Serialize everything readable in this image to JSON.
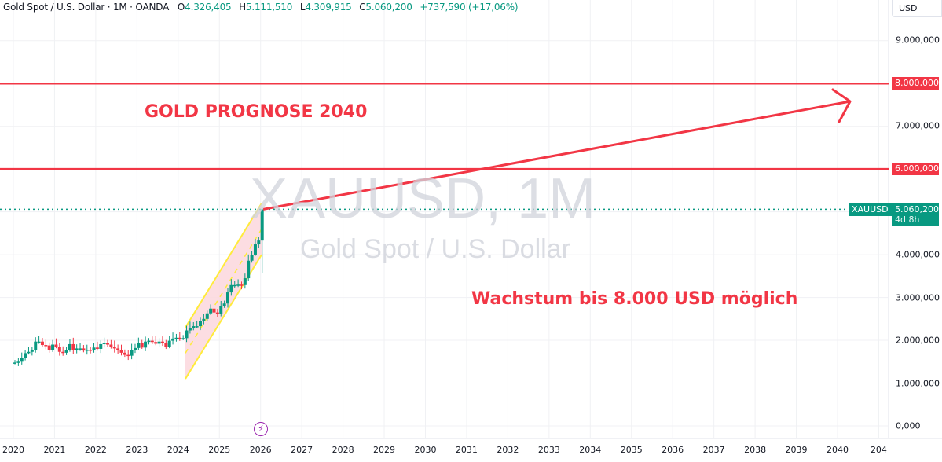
{
  "legend": {
    "title": "Gold Spot / U.S. Dollar · 1M · OANDA",
    "o_label": "O",
    "o_value": "4.326,405",
    "h_label": "H",
    "h_value": "5.111,510",
    "l_label": "L",
    "l_value": "4.309,915",
    "c_label": "C",
    "c_value": "5.060,200",
    "change": "+737,590 (+17,06%)"
  },
  "currency_button": "USD",
  "watermark": {
    "symbol": "XAUUSD, 1M",
    "description": "Gold Spot / U.S. Dollar"
  },
  "annotations": {
    "title": "GOLD PROGNOSE 2040",
    "subtitle": "Wachstum bis 8.000 USD möglich"
  },
  "price_axis": {
    "labels": [
      "9.000,000",
      "7.000,000",
      "4.000,000",
      "3.000,000",
      "2.000,000",
      "1.000,000",
      "0,000"
    ],
    "line_tags": [
      {
        "label": "8.000,000",
        "color": "#f23645"
      },
      {
        "label": "6.000,000",
        "color": "#f23645"
      }
    ],
    "current": {
      "symbol": "XAUUSD",
      "price": "5.060,200",
      "countdown": "4d 8h",
      "color": "#089981"
    }
  },
  "time_axis": {
    "labels": [
      "2020",
      "2021",
      "2022",
      "2023",
      "2024",
      "2025",
      "2026",
      "2027",
      "2028",
      "2029",
      "2030",
      "2031",
      "2032",
      "2033",
      "2034",
      "2035",
      "2036",
      "2037",
      "2038",
      "2039",
      "2040",
      "204"
    ]
  },
  "event_icon": "lightning-icon",
  "colors": {
    "up": "#089981",
    "down": "#f23645",
    "annotation": "#f23645",
    "channel_border": "#ffeb3b",
    "channel_fill": "#f8bbd0",
    "grid": "#f0f3fa"
  },
  "chart_data": {
    "type": "candlestick",
    "title": "Gold Spot / U.S. Dollar · 1M · OANDA",
    "ylabel": "USD",
    "ylim": [
      0,
      9500
    ],
    "x_range": [
      "2020",
      "2041"
    ],
    "horizontal_lines": [
      8000,
      6000
    ],
    "current_price": 5060.2,
    "trend_arrow": {
      "from": {
        "x": "2026-01",
        "y": 5060
      },
      "to": {
        "x": "2040-06",
        "y": 7500
      }
    },
    "channel": {
      "start": "2024-03",
      "end": "2026-01",
      "lower_start": 1100,
      "upper_start": 2300,
      "lower_end": 4000,
      "upper_end": 5200
    },
    "approx_monthly_closes": {
      "2020": [
        1480,
        1500,
        1580,
        1700,
        1730,
        1780,
        1970,
        1970,
        1890,
        1880,
        1780,
        1900
      ],
      "2021": [
        1850,
        1730,
        1710,
        1770,
        1910,
        1770,
        1810,
        1810,
        1760,
        1780,
        1770,
        1830
      ],
      "2022": [
        1800,
        1910,
        1940,
        1900,
        1850,
        1810,
        1770,
        1710,
        1660,
        1640,
        1770,
        1820
      ],
      "2023": [
        1930,
        1830,
        1970,
        1990,
        1960,
        1920,
        1970,
        1940,
        1850,
        1990,
        2040,
        2060
      ],
      "2024": [
        2040,
        2050,
        2230,
        2290,
        2330,
        2330,
        2450,
        2500,
        2630,
        2740,
        2650,
        2620
      ],
      "2025": [
        2800,
        2860,
        3120,
        3290,
        3290,
        3300,
        3290,
        3450,
        3860,
        4000,
        4240,
        4330
      ],
      "2026": [
        5060
      ]
    }
  }
}
